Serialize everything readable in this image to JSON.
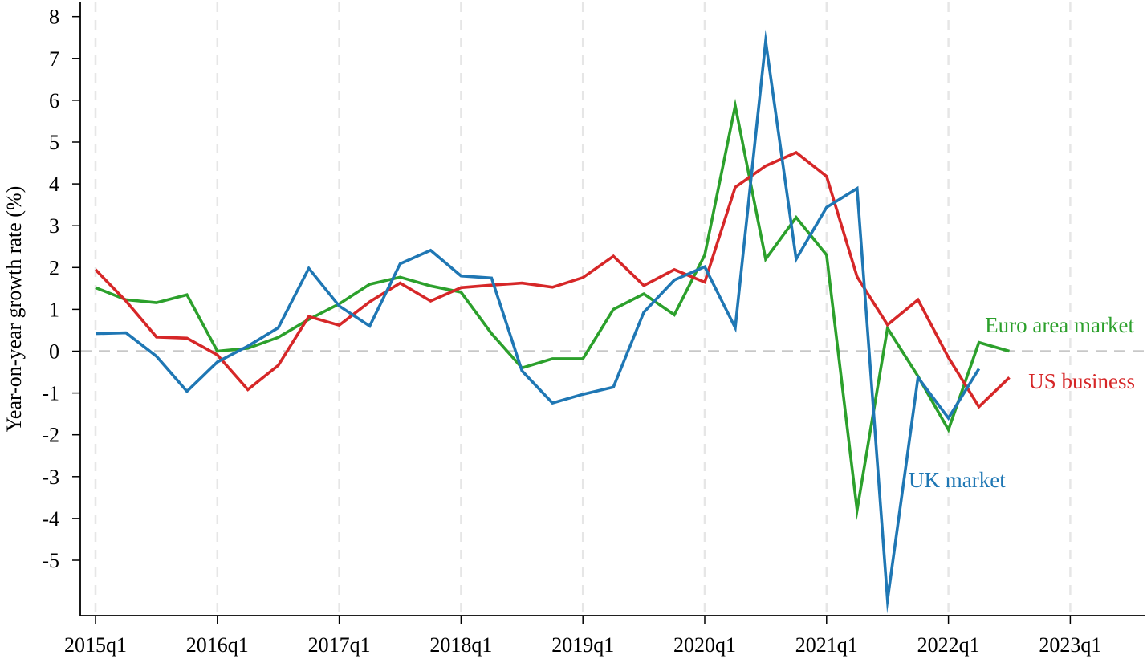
{
  "chart_data": {
    "type": "line",
    "title": "",
    "xlabel": "",
    "ylabel": "Year-on-year growth rate (%)",
    "x_tick_labels": [
      "2015q1",
      "2016q1",
      "2017q1",
      "2018q1",
      "2019q1",
      "2020q1",
      "2021q1",
      "2022q1",
      "2023q1"
    ],
    "y_tick_labels": [
      "8",
      "7",
      "6",
      "5",
      "4",
      "3",
      "2",
      "1",
      "0",
      "-1",
      "-2",
      "-3",
      "-4",
      "-5"
    ],
    "y_ticks": [
      8,
      7,
      6,
      5,
      4,
      3,
      2,
      1,
      0,
      -1,
      -2,
      -3,
      -4,
      -5
    ],
    "ylim": [
      -6.3,
      8.3
    ],
    "xlim": [
      "2015q1",
      "2023q3"
    ],
    "grid": "vertical dashed at year starts",
    "reference_line": 0,
    "x": [
      "2015q1",
      "2015q2",
      "2015q3",
      "2015q4",
      "2016q1",
      "2016q2",
      "2016q3",
      "2016q4",
      "2017q1",
      "2017q2",
      "2017q3",
      "2017q4",
      "2018q1",
      "2018q2",
      "2018q3",
      "2018q4",
      "2019q1",
      "2019q2",
      "2019q3",
      "2019q4",
      "2020q1",
      "2020q2",
      "2020q3",
      "2020q4",
      "2021q1",
      "2021q2",
      "2021q3",
      "2021q4",
      "2022q1",
      "2022q2",
      "2022q3"
    ],
    "series": [
      {
        "name": "Euro area market",
        "color": "#2ca02c",
        "values": [
          1.52,
          1.23,
          1.16,
          1.35,
          0.0,
          0.07,
          0.33,
          0.76,
          1.13,
          1.6,
          1.77,
          1.56,
          1.41,
          0.42,
          -0.4,
          -0.18,
          -0.18,
          1.0,
          1.37,
          0.87,
          2.3,
          5.87,
          2.2,
          3.2,
          2.3,
          -3.8,
          0.55,
          -0.6,
          -1.88,
          0.21,
          0.0
        ]
      },
      {
        "name": "US business",
        "color": "#d62728",
        "values": [
          1.95,
          1.2,
          0.34,
          0.31,
          -0.09,
          -0.92,
          -0.34,
          0.83,
          0.62,
          1.18,
          1.63,
          1.2,
          1.52,
          1.58,
          1.63,
          1.53,
          1.76,
          2.27,
          1.57,
          1.95,
          1.65,
          3.92,
          4.43,
          4.75,
          4.18,
          1.78,
          0.63,
          1.23,
          -0.15,
          -1.33,
          -0.63
        ]
      },
      {
        "name": "UK market",
        "color": "#1f77b4",
        "values": [
          0.42,
          0.44,
          -0.12,
          -0.96,
          -0.26,
          0.12,
          0.56,
          1.98,
          1.08,
          0.6,
          2.09,
          2.41,
          1.8,
          1.75,
          -0.47,
          -1.24,
          -1.03,
          -0.86,
          0.93,
          1.7,
          2.02,
          0.56,
          7.41,
          2.2,
          3.44,
          3.89,
          -5.95,
          -0.63,
          -1.6,
          -0.42,
          null
        ]
      }
    ],
    "annotations": [
      {
        "text": "Euro area market",
        "series": "Euro area market"
      },
      {
        "text": "US business",
        "series": "US business"
      },
      {
        "text": "UK market",
        "series": "UK market"
      }
    ]
  }
}
